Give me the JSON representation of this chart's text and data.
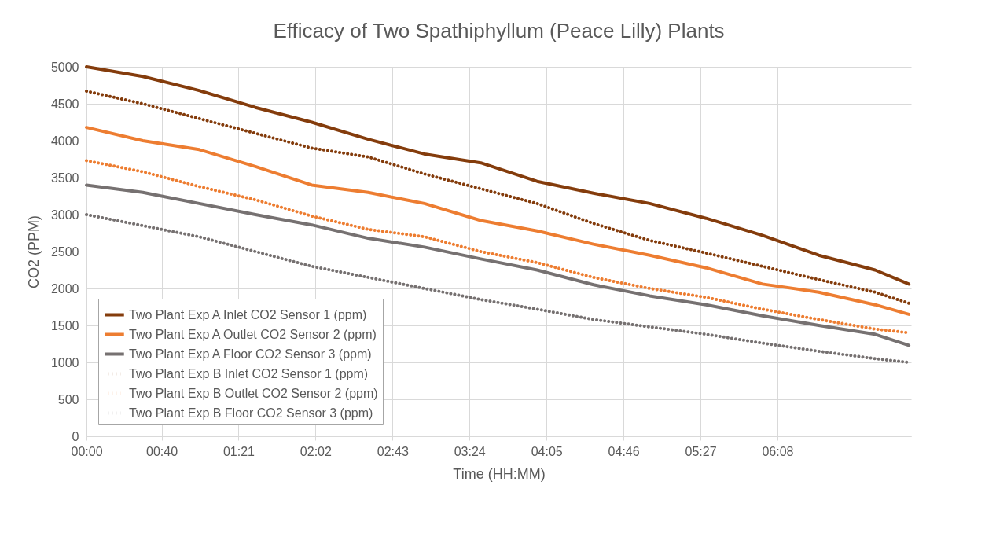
{
  "chart_data": {
    "type": "line",
    "title": "Efficacy of Two Spathiphyllum (Peace Lilly) Plants",
    "xlabel": "Time (HH:MM)",
    "ylabel": "CO2  (PPM)",
    "x": [
      0,
      0.5,
      1,
      1.5,
      2,
      2.5,
      3,
      3.5,
      4,
      4.5,
      5,
      5.5,
      6,
      6.5,
      7,
      7.3
    ],
    "xlim": [
      0,
      7.32
    ],
    "xticks": [
      {
        "value": 0,
        "label": "00:00"
      },
      {
        "value": 0.6667,
        "label": "00:40"
      },
      {
        "value": 1.35,
        "label": "01:21"
      },
      {
        "value": 2.0333,
        "label": "02:02"
      },
      {
        "value": 2.7167,
        "label": "02:43"
      },
      {
        "value": 3.4,
        "label": "03:24"
      },
      {
        "value": 4.0833,
        "label": "04:05"
      },
      {
        "value": 4.7667,
        "label": "04:46"
      },
      {
        "value": 5.45,
        "label": "05:27"
      },
      {
        "value": 6.1333,
        "label": "06:08"
      }
    ],
    "ylim": [
      0,
      5000
    ],
    "yticks": [
      0,
      500,
      1000,
      1500,
      2000,
      2500,
      3000,
      3500,
      4000,
      4500,
      5000
    ],
    "grid": true,
    "legend": "bottom left",
    "marker": "none",
    "series": [
      {
        "name": "Two Plant Exp A Inlet CO2 Sensor 1 (ppm)",
        "color": "#843c0c",
        "line_style": "solid",
        "values": [
          5000,
          4870,
          4680,
          4450,
          4250,
          4020,
          3820,
          3700,
          3450,
          3290,
          3150,
          2950,
          2720,
          2450,
          2250,
          2060
        ]
      },
      {
        "name": "Two Plant Exp A Outlet CO2 Sensor 2 (ppm)",
        "color": "#ed7d31",
        "line_style": "solid",
        "values": [
          4180,
          4000,
          3880,
          3650,
          3400,
          3300,
          3150,
          2920,
          2780,
          2600,
          2450,
          2280,
          2060,
          1950,
          1780,
          1650
        ]
      },
      {
        "name": "Two Plant Exp A Floor CO2 Sensor 3 (ppm)",
        "color": "#767171",
        "line_style": "solid",
        "values": [
          3400,
          3300,
          3150,
          3000,
          2860,
          2680,
          2560,
          2400,
          2250,
          2050,
          1900,
          1780,
          1630,
          1500,
          1380,
          1230
        ]
      },
      {
        "name": "Two Plant Exp B Inlet CO2 Sensor 1 (ppm)",
        "color": "#843c0c",
        "line_style": "dotted",
        "values": [
          4670,
          4500,
          4300,
          4100,
          3900,
          3780,
          3550,
          3350,
          3150,
          2880,
          2650,
          2480,
          2300,
          2120,
          1950,
          1800
        ]
      },
      {
        "name": "Two Plant Exp B Outlet CO2 Sensor 2 (ppm)",
        "color": "#ed7d31",
        "line_style": "dotted",
        "values": [
          3730,
          3580,
          3380,
          3200,
          2980,
          2800,
          2700,
          2500,
          2350,
          2150,
          2000,
          1880,
          1720,
          1580,
          1450,
          1400
        ]
      },
      {
        "name": "Two Plant Exp B Floor CO2 Sensor 3 (ppm)",
        "color": "#767171",
        "line_style": "dotted",
        "values": [
          3000,
          2850,
          2700,
          2500,
          2300,
          2150,
          2000,
          1850,
          1720,
          1580,
          1480,
          1380,
          1260,
          1150,
          1050,
          1000
        ]
      }
    ]
  }
}
